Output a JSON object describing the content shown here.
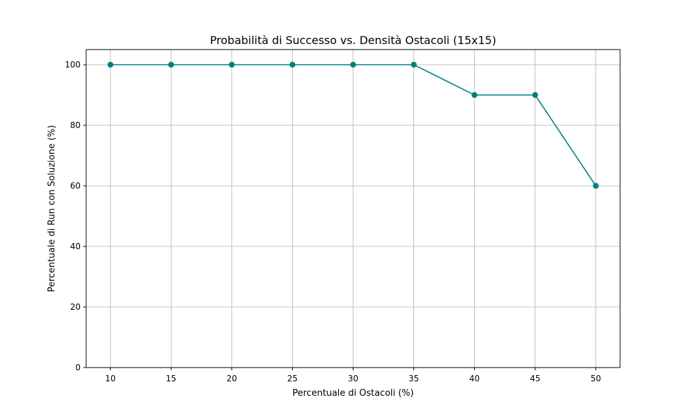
{
  "chart_data": {
    "type": "line",
    "title": "Probabilità di Successo vs. Densità Ostacoli (15x15)",
    "xlabel": "Percentuale di Ostacoli (%)",
    "ylabel": "Percentuale di Run con Soluzione (%)",
    "x": [
      10,
      15,
      20,
      25,
      30,
      35,
      40,
      45,
      50
    ],
    "values": [
      100,
      100,
      100,
      100,
      100,
      100,
      90,
      90,
      60
    ],
    "xlim": [
      8,
      52
    ],
    "ylim": [
      0,
      105
    ],
    "xticks": [
      "10",
      "15",
      "20",
      "25",
      "30",
      "35",
      "40",
      "45",
      "50"
    ],
    "yticks": [
      "0",
      "20",
      "40",
      "60",
      "80",
      "100"
    ],
    "grid": true,
    "line_color": "#008080",
    "grid_color": "#b0b0b0"
  }
}
